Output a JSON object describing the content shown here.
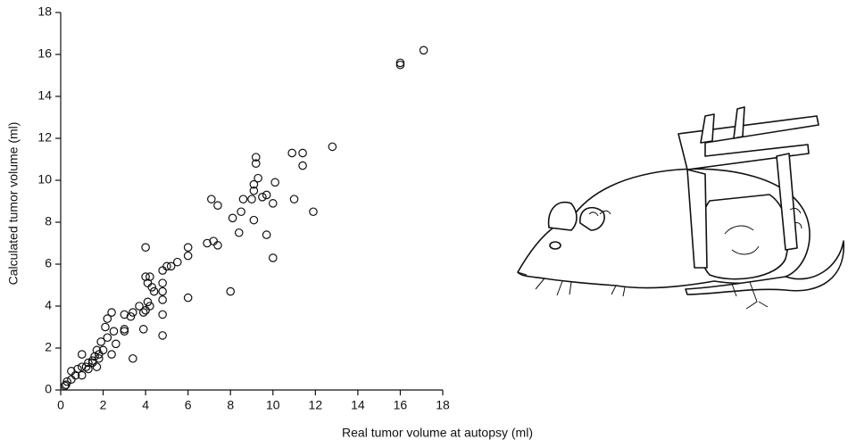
{
  "chart_data": {
    "type": "scatter",
    "x_label": "Real tumor volume at autopsy (ml)",
    "y_label": "Calculated tumor volume (ml)",
    "x": [
      17.1,
      16.0,
      16.0,
      12.8,
      11.9,
      11.4,
      11.4,
      10.9,
      11.0,
      10.1,
      10.0,
      10.0,
      9.7,
      9.5,
      9.7,
      9.2,
      9.2,
      9.3,
      9.1,
      9.1,
      9.0,
      9.1,
      8.6,
      8.5,
      8.4,
      8.1,
      8.0,
      7.1,
      7.4,
      6.9,
      7.2,
      7.4,
      6.0,
      6.0,
      6.0,
      5.5,
      5.2,
      5.0,
      4.8,
      4.8,
      4.8,
      4.8,
      4.8,
      4.8,
      4.0,
      4.0,
      4.2,
      4.1,
      4.3,
      4.4,
      4.1,
      4.2,
      4.0,
      3.9,
      3.9,
      3.7,
      3.4,
      3.3,
      3.4,
      3.0,
      3.0,
      3.0,
      2.4,
      2.2,
      2.1,
      2.2,
      2.5,
      2.6,
      1.9,
      2.0,
      1.8,
      2.4,
      1.7,
      1.6,
      1.5,
      1.3,
      1.0,
      1.0,
      1.2,
      0.8,
      0.7,
      0.5,
      0.5,
      0.3,
      0.25,
      0.2,
      1.0,
      1.3,
      1.7,
      1.8,
      1.5
    ],
    "values": [
      16.2,
      15.6,
      15.5,
      11.6,
      8.5,
      11.3,
      10.7,
      11.3,
      9.1,
      9.9,
      8.9,
      6.3,
      9.3,
      9.2,
      7.4,
      11.1,
      10.8,
      10.1,
      9.8,
      9.5,
      9.1,
      8.1,
      9.1,
      8.5,
      7.5,
      8.2,
      4.7,
      9.1,
      8.8,
      7.0,
      7.1,
      6.9,
      6.8,
      6.4,
      4.4,
      6.1,
      5.9,
      5.9,
      5.7,
      5.1,
      4.7,
      4.3,
      3.6,
      2.6,
      6.8,
      5.4,
      5.4,
      5.1,
      4.9,
      4.7,
      4.2,
      4.0,
      3.8,
      3.7,
      2.9,
      4.0,
      3.7,
      3.5,
      1.5,
      3.6,
      2.9,
      2.8,
      3.7,
      3.4,
      3.0,
      2.5,
      2.8,
      2.2,
      2.3,
      1.9,
      1.7,
      1.7,
      1.9,
      1.6,
      1.4,
      1.3,
      1.7,
      1.1,
      1.1,
      1.0,
      0.7,
      0.9,
      0.5,
      0.4,
      0.25,
      0.2,
      0.7,
      1.0,
      1.1,
      1.5,
      1.3
    ],
    "color": "#111111",
    "xlim": [
      0,
      18
    ],
    "ylim": [
      0,
      18
    ],
    "xticks": [
      0,
      2,
      4,
      6,
      8,
      10,
      12,
      14,
      16,
      18
    ],
    "yticks": [
      0,
      2,
      4,
      6,
      8,
      10,
      12,
      14,
      16,
      18
    ],
    "grid": false
  }
}
